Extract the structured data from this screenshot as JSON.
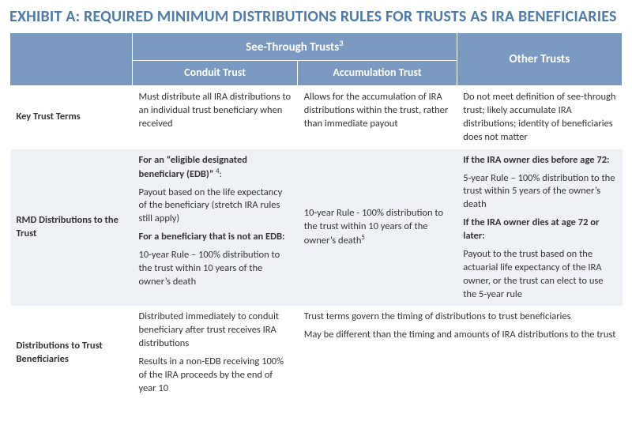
{
  "title": "EXHIBIT A: REQUIRED MINIMUM DISTRIBUTIONS RULES FOR TRUSTS AS IRA BENEFICIARIES",
  "colors": {
    "title": "#4f7ba7",
    "header_bg": "#7a99c0",
    "header_text": "#ffffff",
    "band_alt": "#eef2f7",
    "text": "#333333"
  },
  "table": {
    "column_widths_pct": [
      20,
      27,
      26,
      27
    ],
    "headers": {
      "group": "See-Through Trusts",
      "group_sup": "3",
      "col_conduit": "Conduit Trust",
      "col_accum": "Accumulation Trust",
      "col_other": "Other Trusts"
    },
    "rows": [
      {
        "label": "Key Trust Terms",
        "conduit": [
          {
            "text": "Must distribute all IRA distributions to an individual trust beneficiary when received"
          }
        ],
        "accum": [
          {
            "text": "Allows for the accumulation of IRA distributions within the trust, rather than immediate payout"
          }
        ],
        "other": [
          {
            "text": "Do not meet definition of see-through trust; likely accumulate IRA distributions; identity of beneficiaries does not matter"
          }
        ],
        "accum_colspan": 1
      },
      {
        "label": "RMD Distributions to the Trust",
        "conduit": [
          {
            "bold": true,
            "text": "For an “eligible designated beneficiary (EDB)” ",
            "sup": "4",
            "tail": ":"
          },
          {
            "text": "Payout based on the life expectancy of the beneficiary (stretch IRA rules still apply)"
          },
          {
            "bold": true,
            "text": "For a beneficiary that is not an EDB:"
          },
          {
            "text": "10-year Rule – 100% distribution to the trust within 10 years of the owner’s death"
          }
        ],
        "accum": [
          {
            "text": "10-year Rule - 100% distribution to the trust within 10 years of the owner’s death",
            "sup": "5"
          }
        ],
        "other": [
          {
            "bold": true,
            "text": "If the IRA owner dies before age 72:"
          },
          {
            "text": "5-year Rule – 100% distribution to the trust within 5 years of the owner’s death"
          },
          {
            "bold": true,
            "text": "If the IRA owner dies at age 72 or later:"
          },
          {
            "text": "Payout to the trust based on the actuarial life expectancy of the IRA owner, or the trust can elect to use the 5-year rule"
          }
        ],
        "accum_colspan": 1
      },
      {
        "label": "Distributions to Trust Beneficiaries",
        "conduit": [
          {
            "text": "Distributed immediately to conduit beneficiary after trust receives IRA distributions"
          },
          {
            "text": "Results in a non-EDB receiving 100% of the IRA proceeds by the end of year 10"
          }
        ],
        "accum": [
          {
            "text": "Trust terms govern the timing of distributions to trust beneficiaries"
          },
          {
            "text": "May be different than the timing and amounts of IRA distributions to the trust"
          }
        ],
        "other": [],
        "accum_colspan": 2
      }
    ]
  }
}
